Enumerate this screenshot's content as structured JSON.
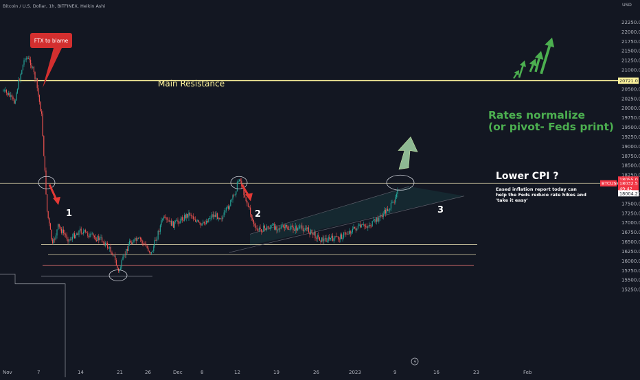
{
  "header": {
    "symbol_line": "Bitcoin / U.S. Dollar, 1h, BITFINEX, Heikin Ashi"
  },
  "axis": {
    "currency": "USD",
    "y_ticks": [
      "22250.0",
      "22000.0",
      "21750.0",
      "21500.0",
      "21250.0",
      "21000.0",
      "20500.0",
      "20250.0",
      "20000.0",
      "19750.0",
      "19500.0",
      "19250.0",
      "19000.0",
      "18750.0",
      "18500.0",
      "18250.0",
      "17750.0",
      "17500.0",
      "17250.0",
      "17000.0",
      "16750.0",
      "16500.0",
      "16250.0",
      "16000.0",
      "15750.0",
      "15500.0",
      "15250.0"
    ],
    "x_ticks": [
      "Nov",
      "7",
      "14",
      "21",
      "26",
      "Dec",
      "8",
      "12",
      "19",
      "26",
      "2023",
      "9",
      "16",
      "23",
      "Feb"
    ],
    "price_tags": {
      "resistance": "20721.0",
      "top": "18055.0",
      "symbol": "BTCUSD",
      "mid": "18032.5",
      "countdown": "49:42",
      "bottom": "18004.2"
    }
  },
  "annotations": {
    "ftx_callout": "FTX to blame",
    "main_resistance": "Main Resistance",
    "rates_line1": "Rates normalize",
    "rates_line2": "(or pivot- Feds print)",
    "cpi_title": "Lower CPI ?",
    "cpi_body": [
      "Eased inflation report today can",
      "help the Feds reduce rate hikes and",
      "'take it easy'"
    ],
    "markers": [
      "1",
      "2",
      "3"
    ]
  },
  "colors": {
    "background": "#131722",
    "up_candle": "#26a69a",
    "down_candle": "#ef5350",
    "resistance_line": "#fff59d",
    "annotation_green": "#4caf50",
    "callout_red": "#d32f2f",
    "price_tag_red": "#f23645"
  },
  "chart_data": {
    "type": "candlestick",
    "title": "Bitcoin / U.S. Dollar, 1h, BITFINEX, Heikin Ashi",
    "ylabel": "USD",
    "ylim": [
      15100,
      22550
    ],
    "x_range": [
      "2022-11-01",
      "2023-02-06"
    ],
    "grid": false,
    "price_path": [
      {
        "x": "2022-11-01",
        "y": 20450
      },
      {
        "x": "2022-11-02",
        "y": 20350
      },
      {
        "x": "2022-11-03",
        "y": 20150
      },
      {
        "x": "2022-11-04",
        "y": 20800
      },
      {
        "x": "2022-11-05",
        "y": 21350
      },
      {
        "x": "2022-11-06",
        "y": 21200
      },
      {
        "x": "2022-11-07",
        "y": 20700
      },
      {
        "x": "2022-11-08",
        "y": 19800
      },
      {
        "x": "2022-11-09",
        "y": 17300
      },
      {
        "x": "2022-11-10",
        "y": 16400
      },
      {
        "x": "2022-11-11",
        "y": 16900
      },
      {
        "x": "2022-11-13",
        "y": 16550
      },
      {
        "x": "2022-11-15",
        "y": 16800
      },
      {
        "x": "2022-11-17",
        "y": 16650
      },
      {
        "x": "2022-11-19",
        "y": 16550
      },
      {
        "x": "2022-11-21",
        "y": 16200
      },
      {
        "x": "2022-11-22",
        "y": 15700
      },
      {
        "x": "2022-11-24",
        "y": 16500
      },
      {
        "x": "2022-11-26",
        "y": 16550
      },
      {
        "x": "2022-11-28",
        "y": 16200
      },
      {
        "x": "2022-11-30",
        "y": 17100
      },
      {
        "x": "2022-12-02",
        "y": 16950
      },
      {
        "x": "2022-12-05",
        "y": 17250
      },
      {
        "x": "2022-12-07",
        "y": 16900
      },
      {
        "x": "2022-12-09",
        "y": 17200
      },
      {
        "x": "2022-12-11",
        "y": 17150
      },
      {
        "x": "2022-12-13",
        "y": 17700
      },
      {
        "x": "2022-12-14",
        "y": 18200
      },
      {
        "x": "2022-12-15",
        "y": 17700
      },
      {
        "x": "2022-12-17",
        "y": 16800
      },
      {
        "x": "2022-12-20",
        "y": 16900
      },
      {
        "x": "2022-12-23",
        "y": 16850
      },
      {
        "x": "2022-12-26",
        "y": 16850
      },
      {
        "x": "2022-12-29",
        "y": 16550
      },
      {
        "x": "2023-01-01",
        "y": 16600
      },
      {
        "x": "2023-01-04",
        "y": 16850
      },
      {
        "x": "2023-01-07",
        "y": 16950
      },
      {
        "x": "2023-01-09",
        "y": 17200
      },
      {
        "x": "2023-01-11",
        "y": 17500
      },
      {
        "x": "2023-01-12",
        "y": 18032.5
      }
    ],
    "horizontal_levels": [
      {
        "name": "Main Resistance",
        "y": 20721.0
      },
      {
        "y": 18032.5
      },
      {
        "y": 16430
      },
      {
        "y": 16160
      },
      {
        "y": 15880
      },
      {
        "y": 15600
      }
    ],
    "circled_points": [
      {
        "label": "1",
        "x": "2022-11-09",
        "y": 18050
      },
      {
        "label": "2",
        "x": "2022-12-14",
        "y": 18050
      },
      {
        "label": "3",
        "x": "2023-01-12",
        "y": 18050
      },
      {
        "label": "",
        "x": "2022-11-22",
        "y": 15620
      }
    ],
    "arrows": [
      {
        "kind": "down",
        "x": "2022-11-10",
        "y_from": 18000,
        "y_to": 17500
      },
      {
        "kind": "down",
        "x": "2022-12-15",
        "y_from": 18000,
        "y_to": 17600
      },
      {
        "kind": "up",
        "x": "2023-01-13",
        "y_from": 18400,
        "y_to": 19250
      }
    ],
    "projection_arrows": [
      {
        "x_from": "2023-02-02",
        "y_from": 20780,
        "x_to": "2023-02-03",
        "y_to": 21000
      },
      {
        "x_from": "2023-02-03",
        "y_from": 20800,
        "x_to": "2023-02-04",
        "y_to": 21250
      },
      {
        "x_from": "2023-02-05",
        "y_from": 20950,
        "x_to": "2023-02-06",
        "y_to": 21300
      },
      {
        "x_from": "2023-02-06",
        "y_from": 20950,
        "x_to": "2023-02-07",
        "y_to": 21500
      },
      {
        "x_from": "2023-02-07",
        "y_from": 20900,
        "x_to": "2023-02-09",
        "y_to": 21850
      }
    ],
    "channel": {
      "lower": [
        {
          "x": "2022-12-16",
          "y": 16400
        },
        {
          "x": "2023-01-24",
          "y": 17700
        }
      ],
      "upper": [
        {
          "x": "2022-12-16",
          "y": 16700
        },
        {
          "x": "2023-01-14",
          "y": 17950
        }
      ]
    }
  }
}
